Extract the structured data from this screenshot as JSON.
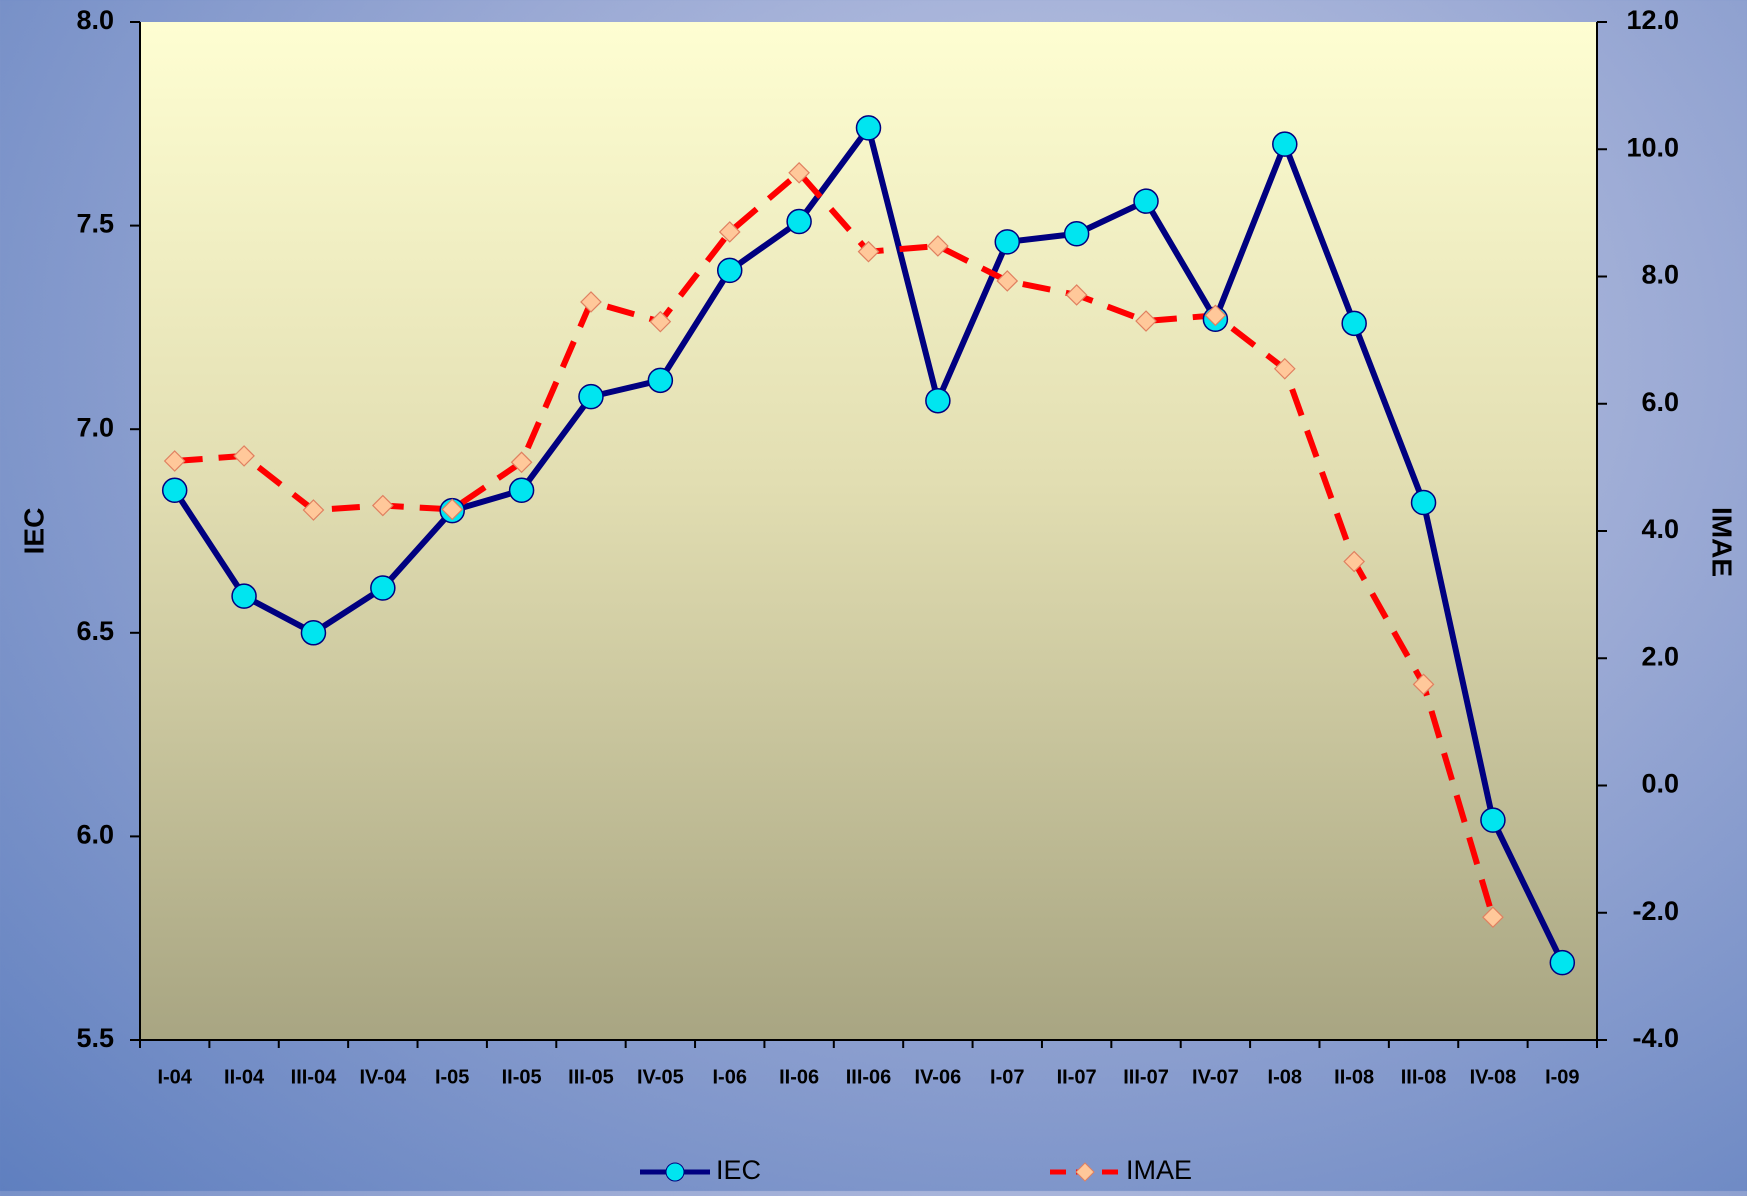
{
  "chart_data": {
    "type": "line",
    "categories": [
      "I-04",
      "II-04",
      "III-04",
      "IV-04",
      "I-05",
      "II-05",
      "III-05",
      "IV-05",
      "I-06",
      "II-06",
      "III-06",
      "IV-06",
      "I-07",
      "II-07",
      "III-07",
      "IV-07",
      "I-08",
      "II-08",
      "III-08",
      "IV-08",
      "I-09"
    ],
    "series": [
      {
        "name": "IEC",
        "color": "#000080",
        "marker_color": "#00e5f0",
        "marker": "circle",
        "dashed": false,
        "values": [
          6.85,
          6.59,
          6.5,
          6.61,
          6.8,
          6.85,
          7.08,
          7.12,
          7.39,
          7.51,
          7.74,
          7.07,
          7.46,
          7.48,
          7.56,
          7.27,
          7.7,
          7.26,
          6.82,
          6.04,
          5.69
        ]
      },
      {
        "name": "IMAE",
        "color": "#ff0000",
        "marker_color": "#ffc89a",
        "marker": "diamond",
        "dashed": true,
        "axis": "y2",
        "values": [
          5.1,
          5.18,
          4.33,
          4.4,
          4.34,
          5.08,
          7.6,
          7.29,
          8.7,
          9.63,
          8.39,
          8.48,
          7.93,
          7.71,
          7.3,
          7.39,
          6.55,
          3.52,
          1.59,
          -2.07,
          null
        ]
      }
    ],
    "ylabel": "IEC",
    "y2label": "IMAE",
    "ylim": [
      5.5,
      8.0
    ],
    "yticks": [
      5.5,
      {
        "value": 6,
        "label": "6.0"
      },
      6.5,
      {
        "value": 7,
        "label": "7.0"
      },
      7.5,
      {
        "value": 8,
        "label": "8.0"
      }
    ],
    "y2lim": [
      -4,
      12
    ],
    "y2ticks": [
      {
        "value": -4,
        "label": "-4.0"
      },
      {
        "value": -2,
        "label": "-2.0"
      },
      {
        "value": 0,
        "label": "0.0"
      },
      {
        "value": 2,
        "label": "2.0"
      },
      {
        "value": 4,
        "label": "4.0"
      },
      {
        "value": 6,
        "label": "6.0"
      },
      {
        "value": 8,
        "label": "8.0"
      },
      {
        "value": 10,
        "label": "10.0"
      },
      {
        "value": 12,
        "label": "12.0"
      }
    ],
    "legend": "bottom"
  }
}
